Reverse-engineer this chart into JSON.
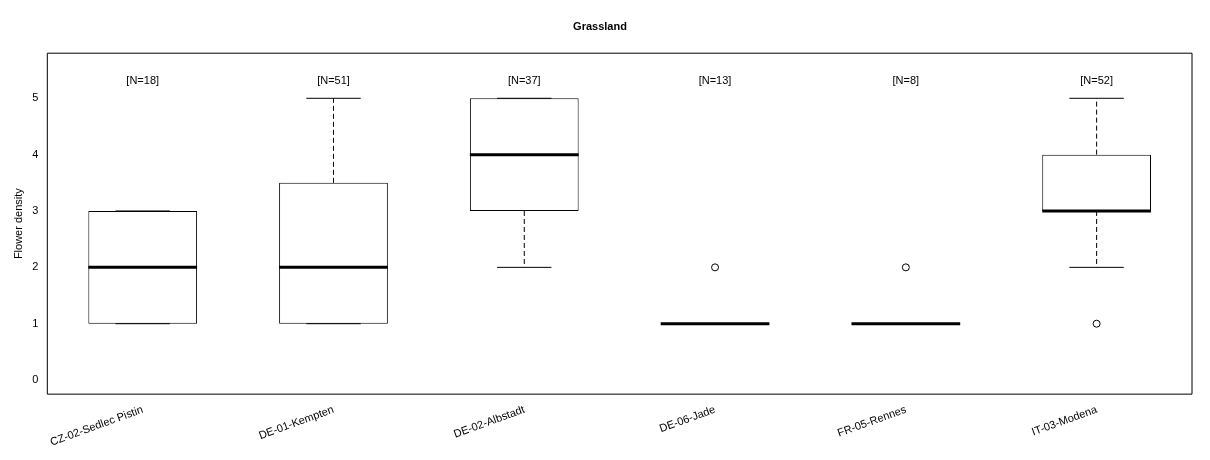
{
  "chart_data": {
    "type": "box",
    "title": "Grassland",
    "ylabel": "Flower density",
    "categories": [
      "CZ-02-Sedlec Pistin",
      "DE-01-Kempten",
      "DE-02-Albstadt",
      "DE-06-Jade",
      "FR-05-Rennes",
      "IT-03-Modena"
    ],
    "boxes": [
      {
        "low": 1,
        "q1": 1,
        "median": 2,
        "q3": 3,
        "high": 3
      },
      {
        "low": 1,
        "q1": 1,
        "median": 2,
        "q3": 3.5,
        "high": 5
      },
      {
        "low": 2,
        "q1": 3,
        "median": 4,
        "q3": 5,
        "high": 5
      },
      {
        "low": 1,
        "q1": 1,
        "median": 1,
        "q3": 1,
        "high": 1,
        "outliers": [
          2
        ]
      },
      {
        "low": 1,
        "q1": 1,
        "median": 1,
        "q3": 1,
        "high": 1,
        "outliers": [
          2
        ]
      },
      {
        "low": 2,
        "q1": 3,
        "median": 3,
        "q3": 4,
        "high": 5,
        "outliers": [
          1
        ]
      }
    ],
    "color": "#000000",
    "ylim": [
      -0.25,
      5.8
    ],
    "yticks": [
      0,
      1,
      2,
      3,
      4,
      5
    ],
    "grid": false,
    "legend": false,
    "line_style": "dashed",
    "annotations": [
      "[N=18]",
      "[N=51]",
      "[N=37]",
      "[N=13]",
      "[N=8]",
      "[N=52]"
    ]
  }
}
